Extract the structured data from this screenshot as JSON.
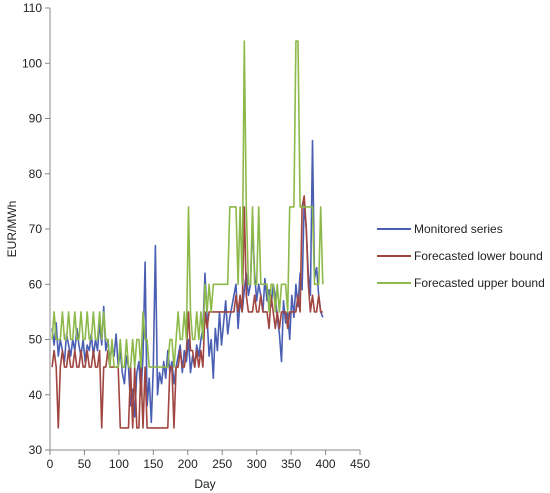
{
  "chart_data": {
    "type": "line",
    "title": "",
    "xlabel": "Day",
    "ylabel": "EUR/MWh",
    "xlim": [
      0,
      450
    ],
    "ylim": [
      30,
      110
    ],
    "x_ticks": [
      0,
      50,
      100,
      150,
      200,
      250,
      300,
      350,
      400,
      450
    ],
    "y_ticks": [
      30,
      40,
      50,
      60,
      70,
      80,
      90,
      100,
      110
    ],
    "grid": false,
    "legend_position": "right",
    "series": [
      {
        "name": "Monitored series",
        "color": "#4A5FB3",
        "x": [
          3,
          6,
          9,
          12,
          15,
          18,
          21,
          24,
          27,
          30,
          33,
          36,
          39,
          42,
          45,
          48,
          51,
          54,
          57,
          60,
          63,
          66,
          69,
          72,
          75,
          78,
          81,
          84,
          87,
          90,
          93,
          96,
          99,
          102,
          105,
          108,
          111,
          114,
          117,
          120,
          123,
          126,
          129,
          132,
          135,
          138,
          141,
          144,
          147,
          150,
          153,
          156,
          159,
          162,
          165,
          168,
          171,
          174,
          177,
          180,
          183,
          186,
          189,
          192,
          195,
          198,
          201,
          204,
          207,
          210,
          213,
          216,
          219,
          222,
          225,
          228,
          231,
          234,
          237,
          240,
          243,
          246,
          249,
          252,
          255,
          258,
          261,
          264,
          267,
          270,
          273,
          276,
          279,
          282,
          285,
          288,
          291,
          294,
          297,
          300,
          303,
          306,
          309,
          312,
          315,
          318,
          321,
          324,
          327,
          330,
          333,
          336,
          339,
          342,
          345,
          348,
          351,
          354,
          357,
          360,
          363,
          366,
          369,
          372,
          375,
          378,
          381,
          384,
          387,
          390,
          393,
          396
        ],
        "y": [
          52,
          49,
          53,
          47,
          50,
          48,
          46,
          51,
          49,
          47,
          50,
          48,
          52,
          49,
          47,
          50,
          46,
          49,
          48,
          51,
          47,
          50,
          48,
          53,
          49,
          56,
          48,
          50,
          46,
          49,
          47,
          51,
          45,
          48,
          44,
          42,
          47,
          45,
          38,
          41,
          36,
          44,
          46,
          40,
          47,
          64,
          38,
          43,
          35,
          45,
          67,
          40,
          44,
          42,
          46,
          43,
          48,
          44,
          46,
          42,
          45,
          47,
          49,
          44,
          48,
          46,
          50,
          44,
          47,
          45,
          49,
          47,
          50,
          52,
          62,
          54,
          47,
          50,
          43,
          52,
          48,
          55,
          49,
          53,
          57,
          51,
          54,
          56,
          58,
          60,
          52,
          57,
          55,
          59,
          62,
          58,
          60,
          71,
          62,
          57,
          60,
          58,
          55,
          61,
          57,
          59,
          56,
          60,
          58,
          54,
          51,
          46,
          57,
          53,
          55,
          50,
          58,
          54,
          60,
          56,
          62,
          59,
          75,
          70,
          62,
          58,
          86,
          61,
          63,
          58,
          55,
          54
        ]
      },
      {
        "name": "Forecasted lower bound",
        "color": "#A0453F",
        "x": [
          3,
          6,
          9,
          12,
          15,
          18,
          21,
          24,
          27,
          30,
          33,
          36,
          39,
          42,
          45,
          48,
          51,
          54,
          57,
          60,
          63,
          66,
          69,
          72,
          75,
          78,
          81,
          84,
          87,
          90,
          93,
          96,
          99,
          102,
          105,
          108,
          111,
          114,
          117,
          120,
          123,
          126,
          129,
          132,
          135,
          138,
          141,
          144,
          147,
          150,
          153,
          156,
          159,
          162,
          165,
          168,
          171,
          174,
          177,
          180,
          183,
          186,
          189,
          192,
          195,
          198,
          201,
          204,
          207,
          210,
          213,
          216,
          219,
          222,
          225,
          228,
          231,
          234,
          237,
          240,
          243,
          246,
          249,
          252,
          255,
          258,
          261,
          264,
          267,
          270,
          273,
          276,
          279,
          282,
          285,
          288,
          291,
          294,
          297,
          300,
          303,
          306,
          309,
          312,
          315,
          318,
          321,
          324,
          327,
          330,
          333,
          336,
          339,
          342,
          345,
          348,
          351,
          354,
          357,
          360,
          363,
          366,
          369,
          372,
          375,
          378,
          381,
          384,
          387,
          390,
          393,
          396
        ],
        "y": [
          45,
          48,
          45,
          34,
          45,
          48,
          45,
          45,
          48,
          45,
          45,
          48,
          45,
          45,
          48,
          45,
          45,
          48,
          45,
          45,
          48,
          45,
          45,
          48,
          34,
          45,
          45,
          48,
          45,
          45,
          45,
          45,
          45,
          34,
          34,
          34,
          34,
          34,
          45,
          34,
          45,
          34,
          34,
          45,
          34,
          45,
          34,
          34,
          34,
          34,
          34,
          34,
          34,
          34,
          34,
          34,
          34,
          45,
          45,
          34,
          45,
          45,
          48,
          45,
          45,
          48,
          55,
          48,
          48,
          45,
          48,
          45,
          48,
          45,
          55,
          52,
          55,
          55,
          55,
          55,
          55,
          55,
          55,
          55,
          55,
          55,
          55,
          55,
          55,
          58,
          55,
          58,
          55,
          74,
          58,
          55,
          55,
          55,
          58,
          55,
          55,
          58,
          55,
          55,
          55,
          52,
          58,
          55,
          52,
          55,
          52,
          55,
          55,
          55,
          52,
          55,
          55,
          55,
          55,
          58,
          55,
          74,
          76,
          70,
          60,
          55,
          58,
          55,
          55,
          58,
          55,
          55
        ]
      },
      {
        "name": "Forecasted upper bound",
        "color": "#8DB94A",
        "x": [
          3,
          6,
          9,
          12,
          15,
          18,
          21,
          24,
          27,
          30,
          33,
          36,
          39,
          42,
          45,
          48,
          51,
          54,
          57,
          60,
          63,
          66,
          69,
          72,
          75,
          78,
          81,
          84,
          87,
          90,
          93,
          96,
          99,
          102,
          105,
          108,
          111,
          114,
          117,
          120,
          123,
          126,
          129,
          132,
          135,
          138,
          141,
          144,
          147,
          150,
          153,
          156,
          159,
          162,
          165,
          168,
          171,
          174,
          177,
          180,
          183,
          186,
          189,
          192,
          195,
          198,
          201,
          204,
          207,
          210,
          213,
          216,
          219,
          222,
          225,
          228,
          231,
          234,
          237,
          240,
          243,
          246,
          249,
          252,
          255,
          258,
          261,
          264,
          267,
          270,
          273,
          276,
          279,
          282,
          285,
          288,
          291,
          294,
          297,
          300,
          303,
          306,
          309,
          312,
          315,
          318,
          321,
          324,
          327,
          330,
          333,
          336,
          339,
          342,
          345,
          348,
          351,
          354,
          357,
          360,
          363,
          366,
          369,
          372,
          375,
          378,
          381,
          384,
          387,
          390,
          393,
          396
        ],
        "y": [
          50,
          55,
          50,
          50,
          50,
          55,
          50,
          50,
          55,
          50,
          50,
          55,
          50,
          50,
          55,
          50,
          50,
          55,
          50,
          50,
          55,
          50,
          50,
          55,
          50,
          55,
          50,
          50,
          45,
          50,
          45,
          45,
          45,
          50,
          45,
          45,
          50,
          45,
          45,
          50,
          45,
          50,
          50,
          45,
          55,
          50,
          50,
          45,
          45,
          45,
          45,
          45,
          45,
          45,
          45,
          45,
          45,
          50,
          50,
          45,
          50,
          55,
          50,
          50,
          55,
          50,
          74,
          55,
          50,
          50,
          55,
          50,
          55,
          50,
          60,
          55,
          60,
          55,
          60,
          60,
          60,
          60,
          60,
          60,
          60,
          60,
          74,
          74,
          74,
          74,
          60,
          74,
          60,
          104,
          74,
          60,
          60,
          74,
          60,
          60,
          74,
          60,
          60,
          60,
          60,
          55,
          60,
          60,
          55,
          60,
          55,
          60,
          60,
          60,
          55,
          74,
          74,
          74,
          104,
          104,
          74,
          74,
          74,
          74,
          74,
          74,
          74,
          60,
          60,
          60,
          74,
          60
        ]
      }
    ]
  }
}
